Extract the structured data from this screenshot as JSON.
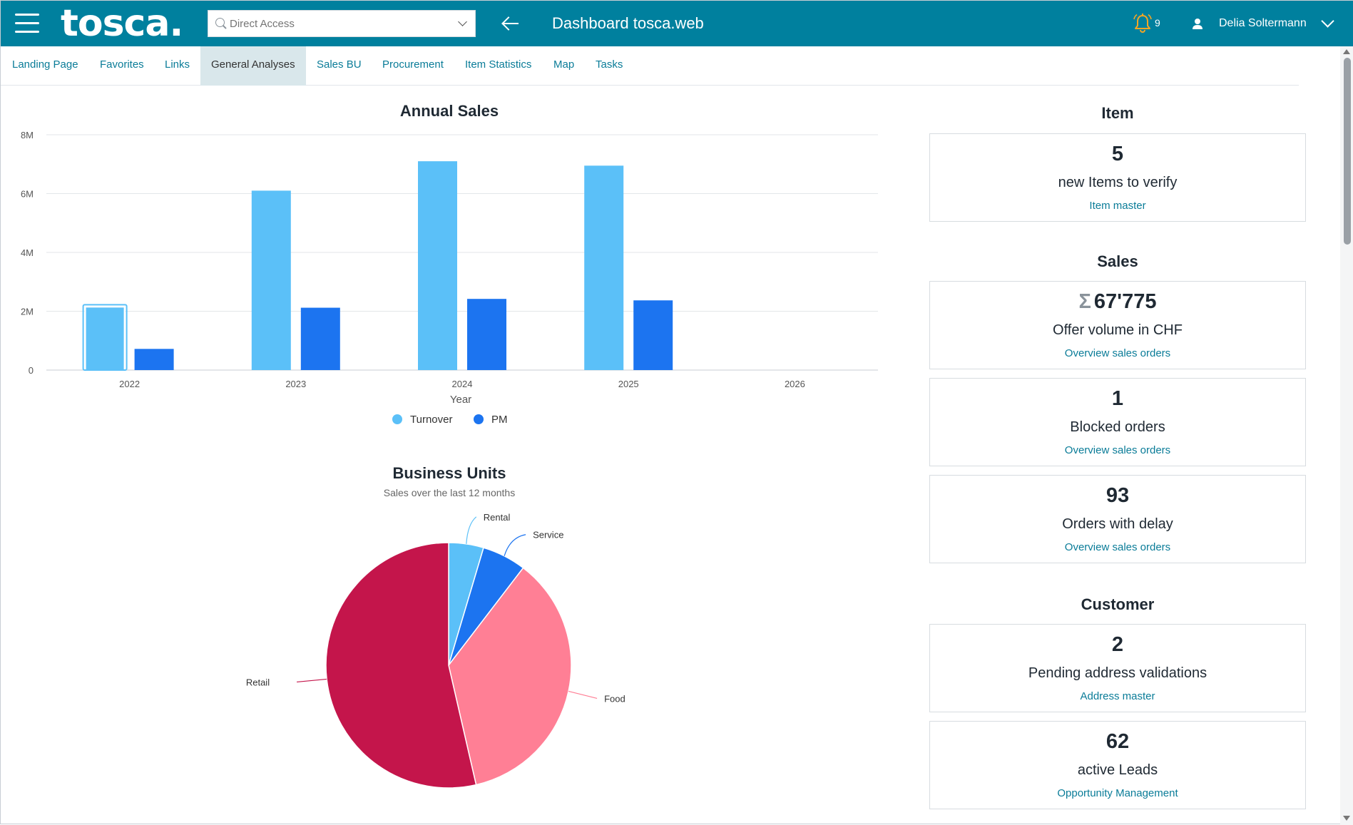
{
  "header": {
    "logo": "tosca.",
    "search_placeholder": "Direct Access",
    "title": "Dashboard tosca.web",
    "notification_count": "9",
    "user_name": "Delia Soltermann"
  },
  "tabs": [
    {
      "label": "Landing Page",
      "active": false
    },
    {
      "label": "Favorites",
      "active": false
    },
    {
      "label": "Links",
      "active": false
    },
    {
      "label": "General Analyses",
      "active": true
    },
    {
      "label": "Sales BU",
      "active": false
    },
    {
      "label": "Procurement",
      "active": false
    },
    {
      "label": "Item Statistics",
      "active": false
    },
    {
      "label": "Map",
      "active": false
    },
    {
      "label": "Tasks",
      "active": false
    }
  ],
  "chart_data": [
    {
      "type": "bar",
      "title": "Annual Sales",
      "xlabel": "Year",
      "ylabel": "",
      "categories": [
        "2022",
        "2023",
        "2024",
        "2025",
        "2026"
      ],
      "series": [
        {
          "name": "Turnover",
          "color": "#5bc0f8",
          "values": [
            2150000,
            6100000,
            7100000,
            6950000,
            0
          ]
        },
        {
          "name": "PM",
          "color": "#1c74f0",
          "values": [
            720000,
            2120000,
            2420000,
            2370000,
            0
          ]
        }
      ],
      "ylim": [
        0,
        8000000
      ],
      "yticks": [
        {
          "value": 0,
          "label": "0"
        },
        {
          "value": 2000000,
          "label": "2M"
        },
        {
          "value": 4000000,
          "label": "4M"
        },
        {
          "value": 6000000,
          "label": "6M"
        },
        {
          "value": 8000000,
          "label": "8M"
        }
      ],
      "grid": true,
      "legend": "bottom-center"
    },
    {
      "type": "pie",
      "title": "Business Units",
      "subtitle": "Sales over the last 12 months",
      "slices": [
        {
          "label": "Rental",
          "value": 4.6,
          "color": "#5bc0f8"
        },
        {
          "label": "Service",
          "value": 5.8,
          "color": "#1c74f0"
        },
        {
          "label": "Food",
          "value": 36.0,
          "color": "#ff7f95"
        },
        {
          "label": "Retail",
          "value": 53.6,
          "color": "#c4154b"
        }
      ]
    }
  ],
  "panel": {
    "item": {
      "title": "Item",
      "cards": [
        {
          "value": "5",
          "label": "new Items to verify",
          "link": "Item master"
        }
      ]
    },
    "sales": {
      "title": "Sales",
      "cards": [
        {
          "prefix": "Σ",
          "value": "67'775",
          "label": "Offer volume in CHF",
          "link": "Overview sales orders"
        },
        {
          "value": "1",
          "label": "Blocked orders",
          "link": "Overview sales orders"
        },
        {
          "value": "93",
          "label": "Orders with delay",
          "link": "Overview sales orders"
        }
      ]
    },
    "customer": {
      "title": "Customer",
      "cards": [
        {
          "value": "2",
          "label": "Pending address validations",
          "link": "Address master"
        },
        {
          "value": "62",
          "label": "active Leads",
          "link": "Opportunity Management"
        }
      ]
    }
  }
}
